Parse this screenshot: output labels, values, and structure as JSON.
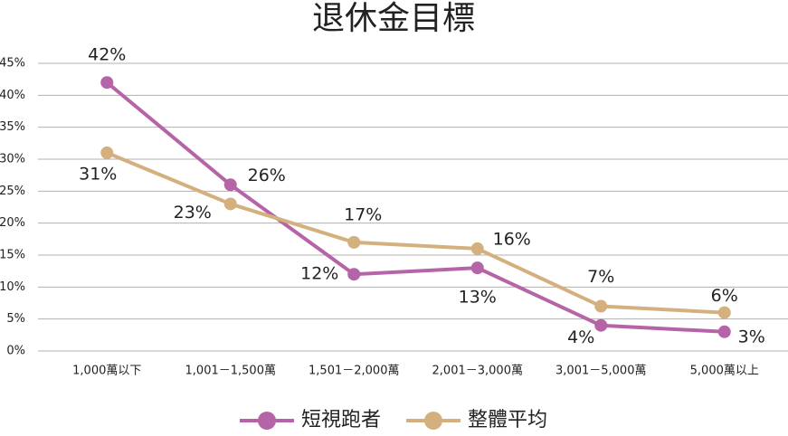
{
  "chart_data": {
    "type": "line",
    "title": "退休金目標",
    "categories": [
      "1,000萬以下",
      "1,001－1,500萬",
      "1,501－2,000萬",
      "2,001－3,000萬",
      "3,001－5,000萬",
      "5,000萬以上"
    ],
    "series": [
      {
        "name": "短視跑者",
        "color": "#b565a7",
        "values": [
          42,
          26,
          12,
          13,
          4,
          3
        ],
        "value_labels": [
          "42%",
          "26%",
          "12%",
          "13%",
          "4%",
          "3%"
        ]
      },
      {
        "name": "整體平均",
        "color": "#d4b07f",
        "values": [
          31,
          23,
          17,
          16,
          7,
          6
        ],
        "value_labels": [
          "31%",
          "23%",
          "17%",
          "16%",
          "7%",
          "6%"
        ]
      }
    ],
    "ylim": [
      0,
      45
    ],
    "yticks": [
      {
        "value": 0,
        "label": "0%"
      },
      {
        "value": 5,
        "label": "5%"
      },
      {
        "value": 10,
        "label": "10%"
      },
      {
        "value": 15,
        "label": "15%"
      },
      {
        "value": 20,
        "label": "20%"
      },
      {
        "value": 25,
        "label": "25%"
      },
      {
        "value": 30,
        "label": "30%"
      },
      {
        "value": 35,
        "label": "35%"
      },
      {
        "value": 40,
        "label": "40%"
      },
      {
        "value": 45,
        "label": "45%"
      }
    ],
    "grid": true,
    "legend": "bottom"
  }
}
